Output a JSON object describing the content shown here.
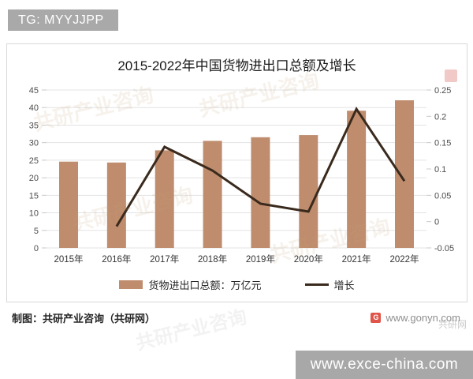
{
  "badge": {
    "text": "TG: MYYJJPP",
    "bg": "#a9a9a9"
  },
  "chart": {
    "title": "2015-2022年中国货物进出口总额及增长",
    "legend_bar_label": "货物进出口总额：万亿元",
    "legend_line_label": "增长"
  },
  "chart_data": {
    "type": "bar+line",
    "title": "2015-2022年中国货物进出口总额及增长",
    "categories": [
      "2015年",
      "2016年",
      "2017年",
      "2018年",
      "2019年",
      "2020年",
      "2021年",
      "2022年"
    ],
    "series": [
      {
        "name": "货物进出口总额：万亿元",
        "type": "bar",
        "axis": "left",
        "values": [
          24.59,
          24.34,
          27.81,
          30.51,
          31.54,
          32.16,
          39.1,
          42.07
        ]
      },
      {
        "name": "增长",
        "type": "line",
        "axis": "right",
        "values": [
          null,
          -0.009,
          0.142,
          0.097,
          0.034,
          0.019,
          0.214,
          0.077
        ]
      }
    ],
    "left_axis": {
      "range": [
        0,
        45
      ],
      "ticks": [
        0,
        5,
        10,
        15,
        20,
        25,
        30,
        35,
        40,
        45
      ]
    },
    "right_axis": {
      "range": [
        -0.05,
        0.25
      ],
      "ticks": [
        -0.05,
        0,
        0.05,
        0.1,
        0.15,
        0.2,
        0.25
      ]
    },
    "grid": true,
    "legend_position": "bottom",
    "colors": {
      "bar": "#bf8d6e",
      "line": "#3a2a1d",
      "grid": "#e3e3e3",
      "tick": "#c9c9c9",
      "axis_text": "#4d4d4d",
      "xlabel_text": "#333333"
    }
  },
  "footer": {
    "credit": "制图：共研产业咨询（共研网）",
    "site": "www.gonyn.com",
    "site_icon_letter": "G"
  },
  "watermark": {
    "brand": "共研产业咨询",
    "site": "共研网",
    "exce": "www.exce-china.com"
  }
}
